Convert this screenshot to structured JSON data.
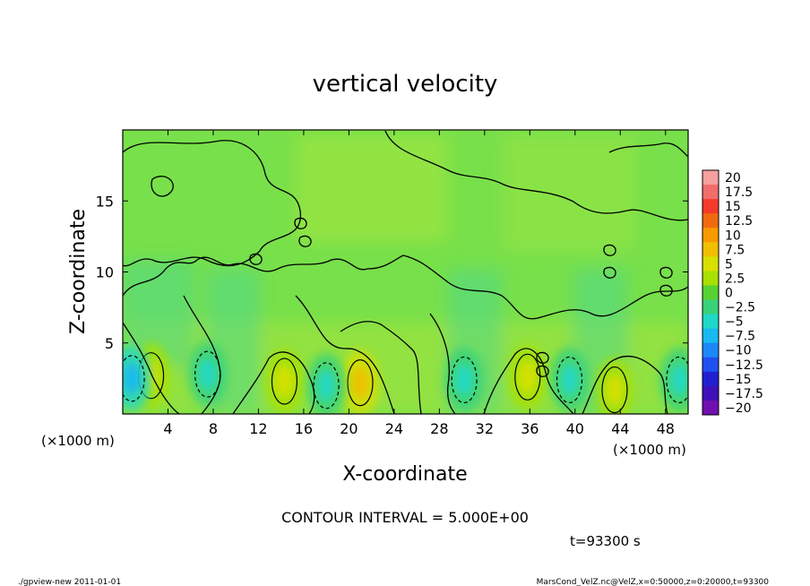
{
  "chart_data": {
    "type": "heatmap",
    "title": "vertical velocity",
    "xlabel": "X-coordinate",
    "ylabel": "Z-coordinate",
    "x_unit_left": "(×1000 m)",
    "x_unit_right": "(×1000 m)",
    "xlim": [
      0,
      50
    ],
    "ylim": [
      0,
      20
    ],
    "x_ticks": [
      4,
      8,
      12,
      16,
      20,
      24,
      28,
      32,
      36,
      40,
      44,
      48
    ],
    "y_ticks": [
      5,
      10,
      15
    ],
    "contour_interval_text": "CONTOUR INTERVAL = 5.000E+00",
    "time_text": "t=93300 s",
    "colorbar": {
      "labels": [
        "20",
        "17.5",
        "15",
        "12.5",
        "10",
        "7.5",
        "5",
        "2.5",
        "0",
        "−2.5",
        "−5",
        "−7.5",
        "−10",
        "−12.5",
        "−15",
        "−17.5",
        "−20"
      ],
      "colors": [
        "#f7a0a0",
        "#f26c6c",
        "#f43a2a",
        "#f26a10",
        "#f79a00",
        "#f0c000",
        "#d8e000",
        "#a8e000",
        "#56d233",
        "#38d27a",
        "#20d8c8",
        "#18b8f0",
        "#1c88f8",
        "#2050f0",
        "#2020d0",
        "#4010b8",
        "#7010b0"
      ]
    },
    "features": [
      {
        "x": 2.5,
        "z": 2.7,
        "value": 5.5
      },
      {
        "x": 14.3,
        "z": 2.3,
        "value": 5.8
      },
      {
        "x": 21.0,
        "z": 2.2,
        "value": 8.0
      },
      {
        "x": 35.8,
        "z": 2.6,
        "value": 5.2
      },
      {
        "x": 43.5,
        "z": 1.7,
        "value": 5.0
      },
      {
        "x": 0.8,
        "z": 2.5,
        "value": -6.5
      },
      {
        "x": 7.5,
        "z": 2.8,
        "value": -6.0
      },
      {
        "x": 18.0,
        "z": 2.0,
        "value": -5.5
      },
      {
        "x": 30.2,
        "z": 2.4,
        "value": -5.5
      },
      {
        "x": 39.5,
        "z": 2.4,
        "value": -6.0
      },
      {
        "x": 49.2,
        "z": 2.4,
        "value": -6.0
      }
    ]
  },
  "footer": {
    "left": "./gpview-new   2011-01-01",
    "right": "MarsCond_VelZ.nc@VelZ,x=0:50000,z=0:20000,t=93300"
  }
}
